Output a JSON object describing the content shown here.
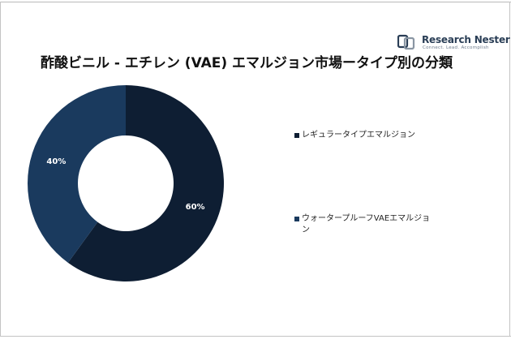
{
  "title": "酢酸ビニル - エチレン (VAE) エマルジョン市場ータイプ別の分類",
  "logo": {
    "name": "Research Nester",
    "tagline": "Connect. Lead. Accomplish"
  },
  "chart_data": {
    "type": "pie",
    "donut": true,
    "title": "酢酸ビニル - エチレン (VAE) エマルジョン市場ータイプ別の分類",
    "categories": [
      "レギュラータイプエマルジョン",
      "ウォータープルーフVAEエマルジョン"
    ],
    "values": [
      60,
      40
    ],
    "data_labels": [
      "60%",
      "40%"
    ],
    "colors": [
      "#0e1e33",
      "#1a3a5e"
    ],
    "legend_position": "right"
  }
}
